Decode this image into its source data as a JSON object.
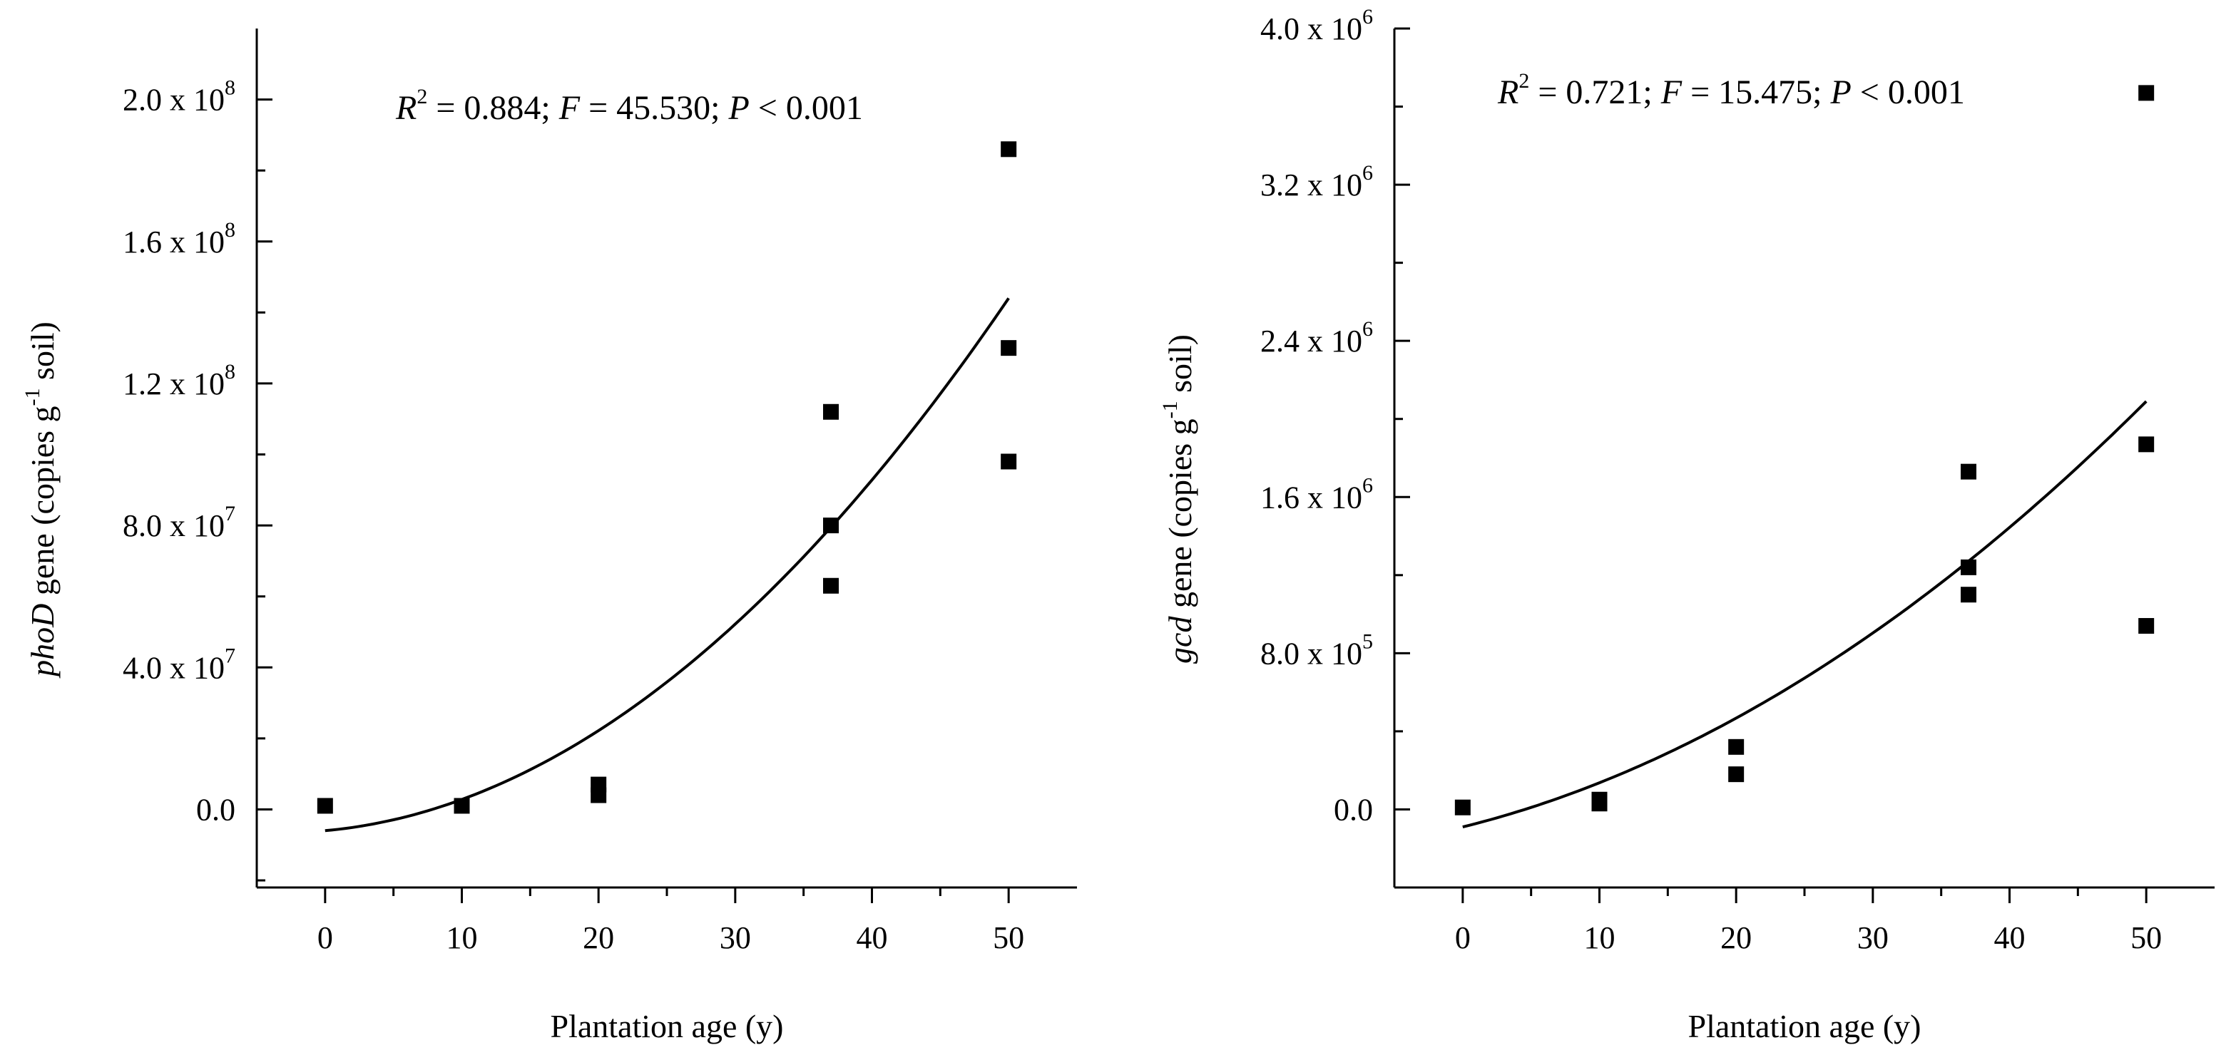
{
  "chart_data": [
    {
      "type": "scatter",
      "id": "phoD",
      "xlabel": "Plantation age (y)",
      "ylabel": {
        "gene": "phoD",
        "rest": " gene (copies g",
        "exp": "-1",
        "tail": " soil)"
      },
      "xlim": [
        -5,
        55
      ],
      "ylim": [
        -22000000.0,
        220000000.0
      ],
      "xticks": [
        0,
        10,
        20,
        30,
        40,
        50
      ],
      "xtick_labels": [
        "0",
        "10",
        "20",
        "30",
        "40",
        "50"
      ],
      "yticks": [
        0,
        40000000.0,
        80000000.0,
        120000000.0,
        160000000.0,
        200000000.0
      ],
      "ytick_labels": [
        {
          "mantissa": "0.0",
          "exp": ""
        },
        {
          "mantissa": "4.0 x 10",
          "exp": "7"
        },
        {
          "mantissa": "8.0 x 10",
          "exp": "7"
        },
        {
          "mantissa": "1.2 x 10",
          "exp": "8"
        },
        {
          "mantissa": "1.6 x 10",
          "exp": "8"
        },
        {
          "mantissa": "2.0 x 10",
          "exp": "8"
        }
      ],
      "points": [
        {
          "x": 0,
          "y": 1000000.0
        },
        {
          "x": 10,
          "y": 1000000.0
        },
        {
          "x": 20,
          "y": 7000000.0
        },
        {
          "x": 20,
          "y": 4000000.0
        },
        {
          "x": 37,
          "y": 112000000.0
        },
        {
          "x": 37,
          "y": 80000000.0
        },
        {
          "x": 37,
          "y": 63000000.0
        },
        {
          "x": 50,
          "y": 186000000.0
        },
        {
          "x": 50,
          "y": 130000000.0
        },
        {
          "x": 50,
          "y": 98000000.0
        }
      ],
      "fit": {
        "type": "quadratic",
        "x_range": [
          0,
          50
        ],
        "coef": [
          -6000000.0,
          350000.0,
          53000.0
        ]
      },
      "annotation": {
        "R": "R",
        "R_exp": "2",
        "R_val": " = 0.884; ",
        "F": "F",
        "F_val": " = 45.530; ",
        "P": "P",
        "P_val": " < 0.001"
      }
    },
    {
      "type": "scatter",
      "id": "gcd",
      "xlabel": "Plantation age (y)",
      "ylabel": {
        "gene": "gcd",
        "rest": " gene (copies g",
        "exp": "-1",
        "tail": " soil)"
      },
      "xlim": [
        -5,
        55
      ],
      "ylim": [
        -400000.0,
        4000000.0
      ],
      "xticks": [
        0,
        10,
        20,
        30,
        40,
        50
      ],
      "xtick_labels": [
        "0",
        "10",
        "20",
        "30",
        "40",
        "50"
      ],
      "yticks": [
        0,
        800000.0,
        1600000.0,
        2400000.0,
        3200000.0,
        4000000.0
      ],
      "ytick_labels": [
        {
          "mantissa": "0.0",
          "exp": ""
        },
        {
          "mantissa": "8.0 x 10",
          "exp": "5"
        },
        {
          "mantissa": "1.6 x 10",
          "exp": "6"
        },
        {
          "mantissa": "2.4 x 10",
          "exp": "6"
        },
        {
          "mantissa": "3.2 x 10",
          "exp": "6"
        },
        {
          "mantissa": "4.0 x 10",
          "exp": "6"
        }
      ],
      "points": [
        {
          "x": 0,
          "y": 10000.0
        },
        {
          "x": 10,
          "y": 50000.0
        },
        {
          "x": 10,
          "y": 30000.0
        },
        {
          "x": 20,
          "y": 320000.0
        },
        {
          "x": 20,
          "y": 180000.0
        },
        {
          "x": 37,
          "y": 1730000.0
        },
        {
          "x": 37,
          "y": 1240000.0
        },
        {
          "x": 37,
          "y": 1100000.0
        },
        {
          "x": 50,
          "y": 3670000.0
        },
        {
          "x": 50,
          "y": 1870000.0
        },
        {
          "x": 50,
          "y": 940000.0
        }
      ],
      "fit": {
        "type": "quadratic",
        "x_range": [
          0,
          50
        ],
        "coef": [
          -90000.0,
          17400.0,
          524.0
        ]
      },
      "annotation": {
        "R": "R",
        "R_exp": "2",
        "R_val": " = 0.721; ",
        "F": "F",
        "F_val": " = 15.475; ",
        "P": "P",
        "P_val": " < 0.001"
      }
    }
  ]
}
